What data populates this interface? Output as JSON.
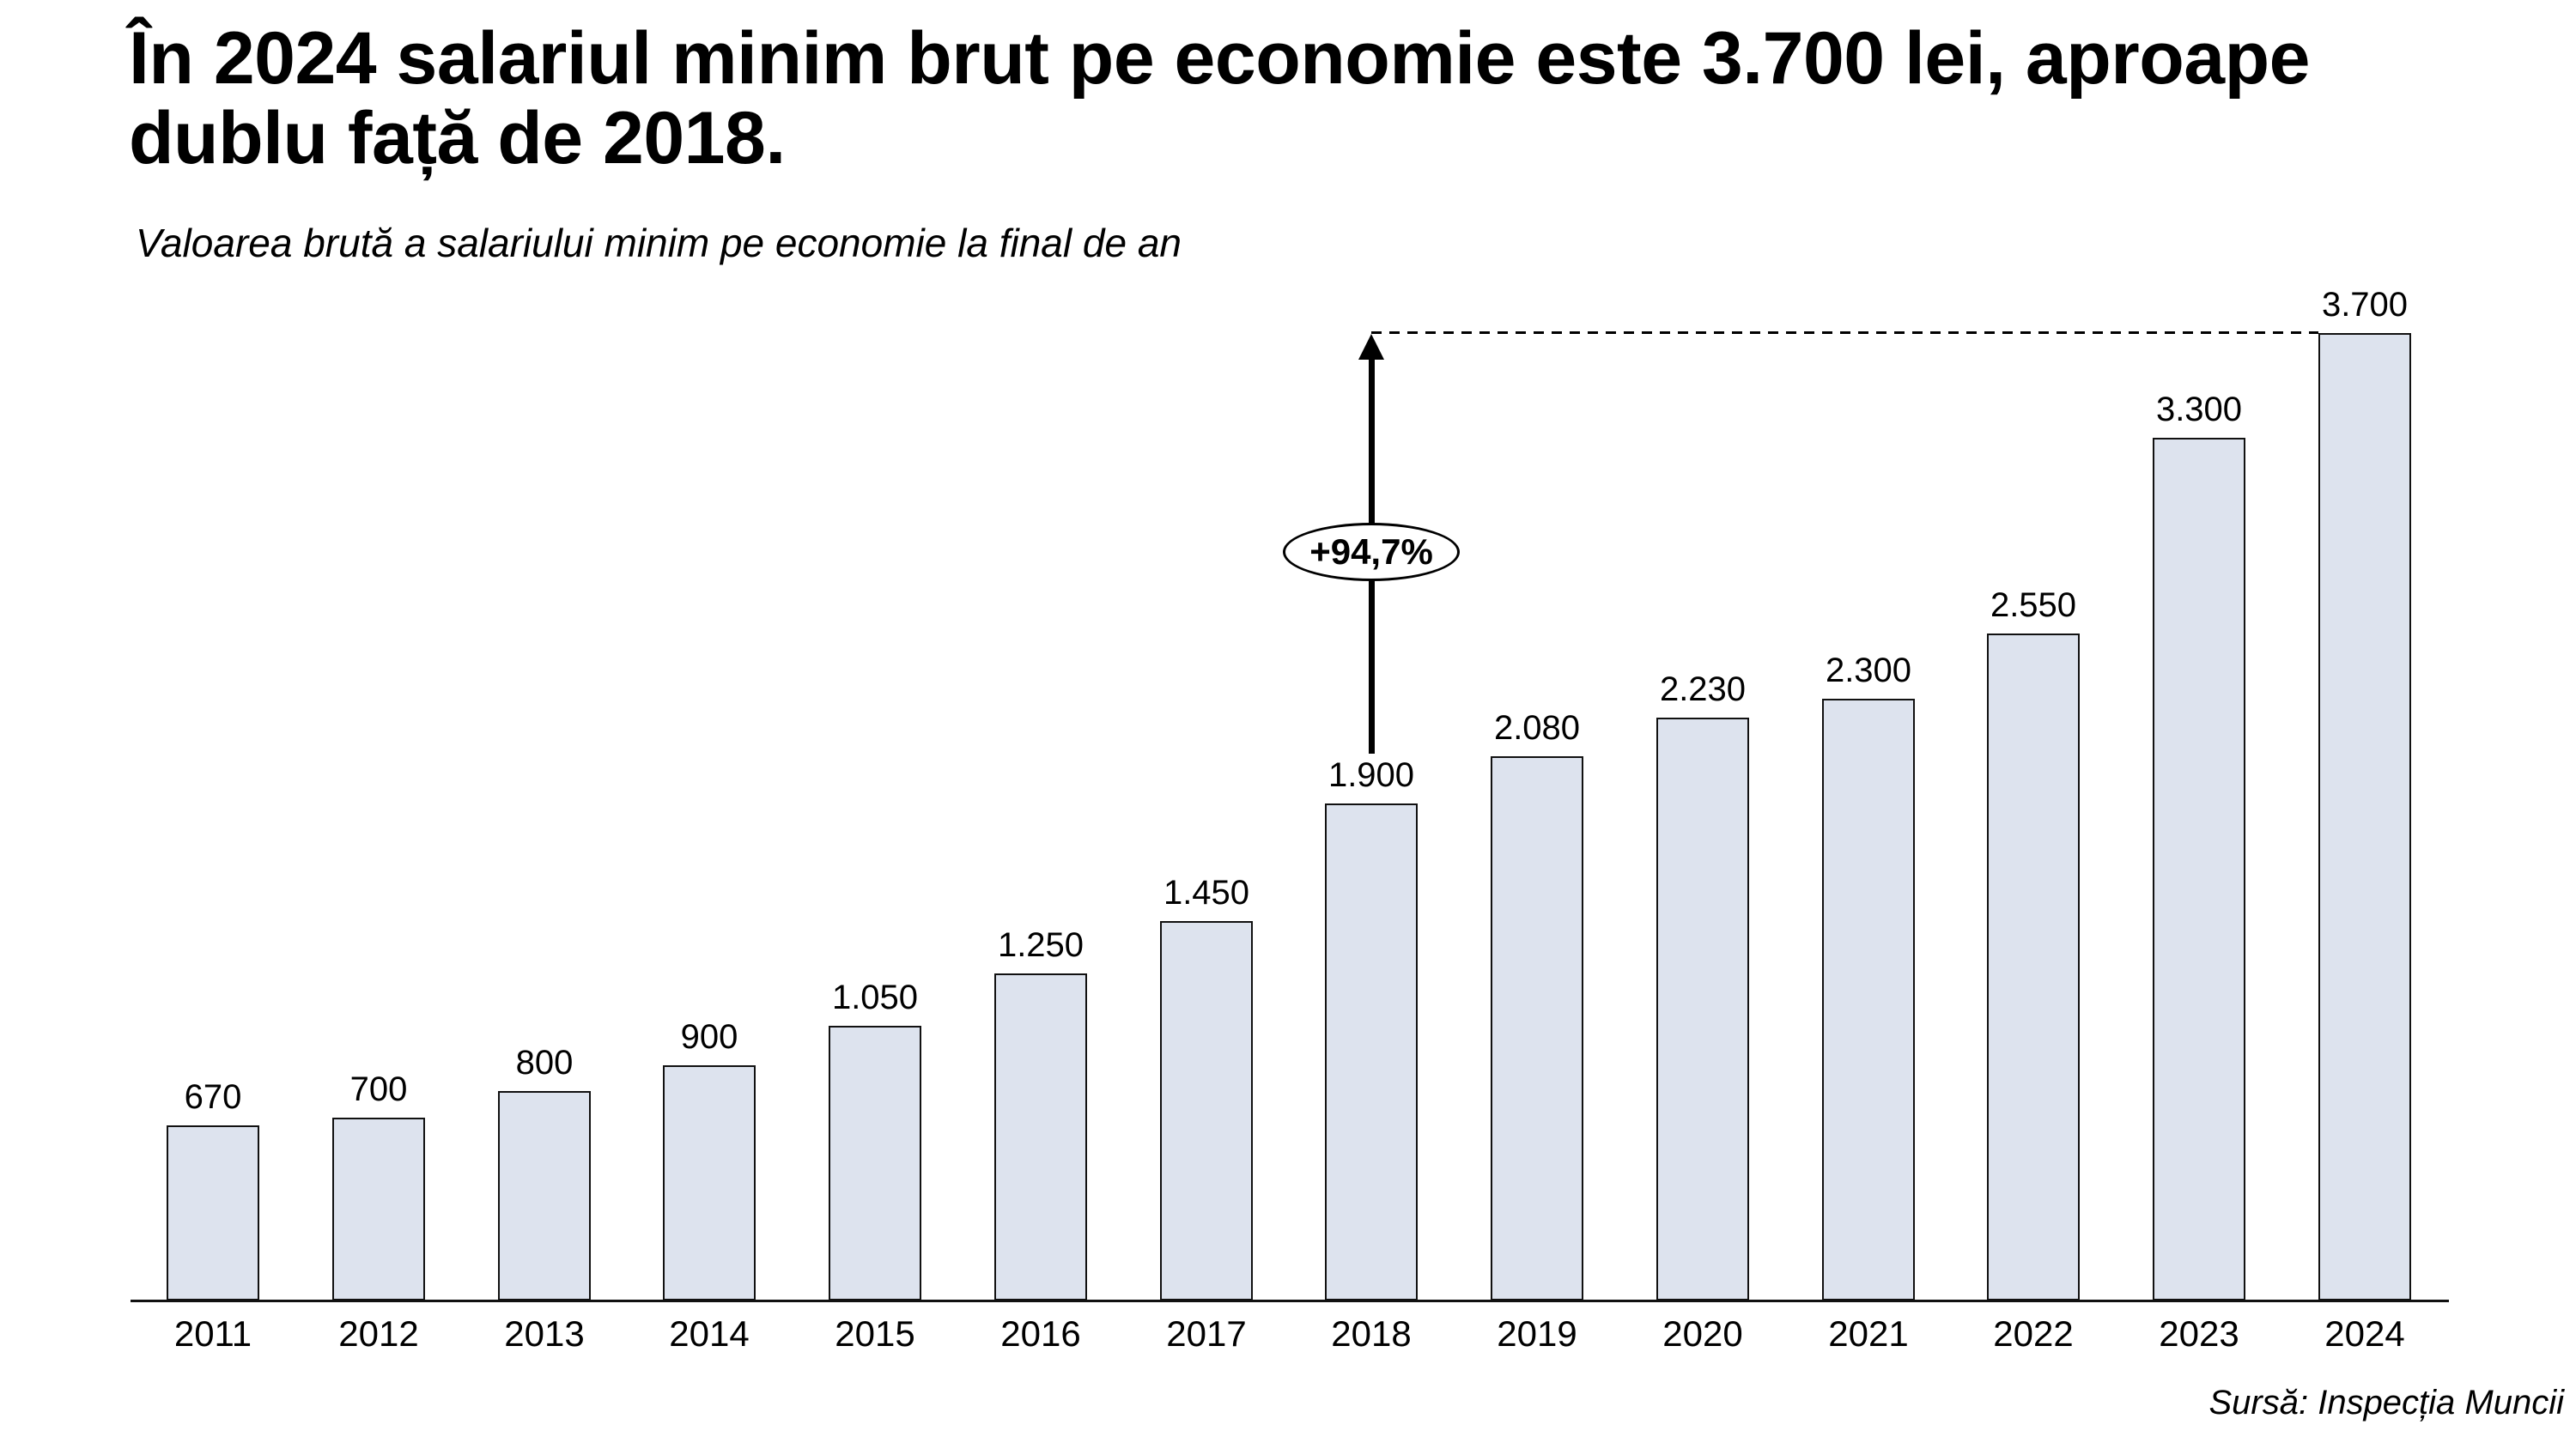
{
  "header": {
    "title_lines": [
      "În 2024 salariul minim brut pe economie este 3.700 lei, aproape",
      "dublu față de 2018."
    ],
    "subtitle": "Valoarea brută a salariului minim pe economie la final de an"
  },
  "chart_data": {
    "type": "bar",
    "title": "În 2024 salariul minim brut pe economie este 3.700 lei, aproape dublu față de 2018.",
    "subtitle": "Valoarea brută a salariului minim pe economie la final de an",
    "categories": [
      "2011",
      "2012",
      "2013",
      "2014",
      "2015",
      "2016",
      "2017",
      "2018",
      "2019",
      "2020",
      "2021",
      "2022",
      "2023",
      "2024"
    ],
    "values": [
      670,
      700,
      800,
      900,
      1050,
      1250,
      1450,
      1900,
      2080,
      2230,
      2300,
      2550,
      3300,
      3700
    ],
    "value_labels": [
      "670",
      "700",
      "800",
      "900",
      "1.050",
      "1.250",
      "1.450",
      "1.900",
      "2.080",
      "2.230",
      "2.300",
      "2.550",
      "3.300",
      "3.700"
    ],
    "unit": "lei",
    "xlabel": "",
    "ylabel": "",
    "ylim": [
      0,
      3700
    ],
    "grid": false,
    "legend": "none",
    "bar_color": "#dde3ee",
    "bar_border_color": "#111111",
    "annotation": {
      "label": "+94,7%",
      "from_year": "2018",
      "to_year": "2024",
      "style": "arrow-up-to-dashed-reference-line"
    }
  },
  "footer": {
    "source": "Sursă: Inspecția Muncii"
  }
}
